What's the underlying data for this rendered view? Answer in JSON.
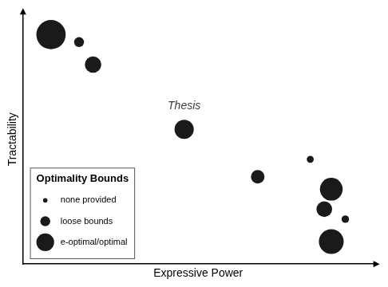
{
  "chart_data": {
    "type": "bubble",
    "xlabel": "Expressive Power",
    "ylabel": "Tractability",
    "x": [
      0.08,
      0.16,
      0.2,
      0.46,
      0.67,
      0.82,
      0.88,
      0.86,
      0.92,
      0.88
    ],
    "values": [
      0.92,
      0.89,
      0.8,
      0.54,
      0.35,
      0.42,
      0.3,
      0.22,
      0.18,
      0.09
    ],
    "sizes": [
      700,
      80,
      220,
      300,
      150,
      40,
      420,
      200,
      45,
      500
    ],
    "color": "#1a1a1a",
    "xlim": [
      0,
      1
    ],
    "ylim": [
      0,
      1
    ],
    "tick_labels": false,
    "grid": false,
    "annotations": [
      {
        "x": 0.46,
        "y": 0.61,
        "text": "Thesis"
      }
    ],
    "legend": "lower left",
    "legend_title": "Optimality Bounds",
    "legend_items": [
      {
        "label": "none provided",
        "size": 4
      },
      {
        "label": "loose bounds",
        "size": 9
      },
      {
        "label": "e-optimal/optimal",
        "size": 16
      }
    ]
  }
}
